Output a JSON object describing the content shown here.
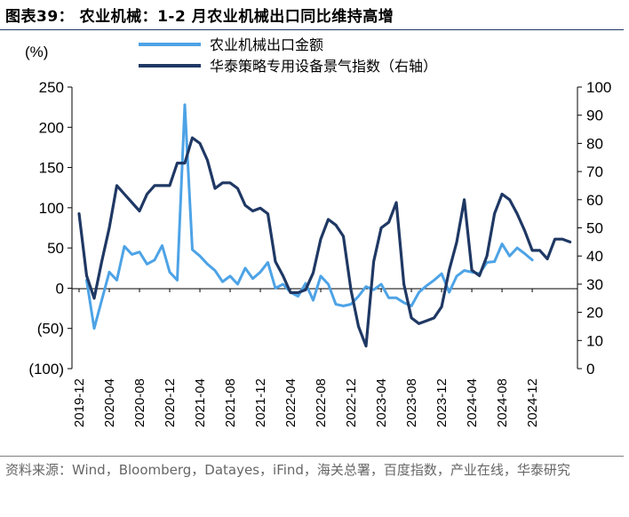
{
  "figure": {
    "title": "图表39：  农业机械：1-2 月农业机械出口同比维持高增",
    "source": "资料来源：Wind，Bloomberg，Datayes，iFind，海关总署，百度指数，产业在线，华泰研究"
  },
  "chart_data": {
    "type": "line",
    "unit_label": "(%)",
    "x_tick_labels": [
      "2019-12",
      "2020-04",
      "2020-08",
      "2020-12",
      "2021-04",
      "2021-08",
      "2021-12",
      "2022-04",
      "2022-08",
      "2022-12",
      "2023-04",
      "2023-08",
      "2023-12",
      "2024-04",
      "2024-08",
      "2024-12"
    ],
    "y_left": {
      "min": -100,
      "max": 250,
      "ticks": [
        250,
        200,
        150,
        100,
        50,
        0,
        -50,
        -100
      ],
      "tick_labels": [
        "250",
        "200",
        "150",
        "100",
        "50",
        "0",
        "(50)",
        "(100)"
      ]
    },
    "y_right": {
      "min": 0,
      "max": 100,
      "ticks": [
        100,
        90,
        80,
        70,
        60,
        50,
        40,
        30,
        20,
        10,
        0
      ],
      "tick_labels": [
        "100",
        "90",
        "80",
        "70",
        "60",
        "50",
        "40",
        "30",
        "20",
        "10",
        "0"
      ]
    },
    "legend_position": "top",
    "grid": false,
    "series": [
      {
        "name": "农业机械出口金额",
        "axis": "left",
        "color": "#4da3e6",
        "start_index": 1,
        "values": [
          10,
          -50,
          -15,
          20,
          10,
          52,
          42,
          45,
          30,
          35,
          53,
          20,
          10,
          228,
          48,
          40,
          30,
          22,
          8,
          15,
          5,
          25,
          12,
          20,
          32,
          0,
          5,
          -5,
          -10,
          6,
          -15,
          15,
          5,
          -20,
          -22,
          -20,
          -10,
          2,
          -2,
          5,
          -12,
          -12,
          -18,
          -22,
          -5,
          3,
          10,
          18,
          -5,
          15,
          22,
          20,
          18,
          32,
          33,
          55,
          40,
          50,
          43,
          35
        ]
      },
      {
        "name": "华泰策略专用设备景气指数（右轴）",
        "axis": "right",
        "color": "#1f3864",
        "start_index": 0,
        "values": [
          55,
          33,
          25,
          38,
          50,
          65,
          62,
          59,
          56,
          62,
          65,
          65,
          65,
          73,
          73,
          82,
          80,
          74,
          64,
          66,
          66,
          64,
          58,
          56,
          57,
          55,
          38,
          33,
          27,
          27,
          28,
          34,
          46,
          53,
          51,
          47,
          28,
          15,
          8,
          38,
          50,
          52,
          59,
          30,
          18,
          16,
          17,
          18,
          22,
          35,
          45,
          60,
          35,
          33,
          40,
          55,
          62,
          60,
          55,
          49,
          42,
          42,
          39,
          46,
          46,
          45
        ]
      }
    ]
  }
}
